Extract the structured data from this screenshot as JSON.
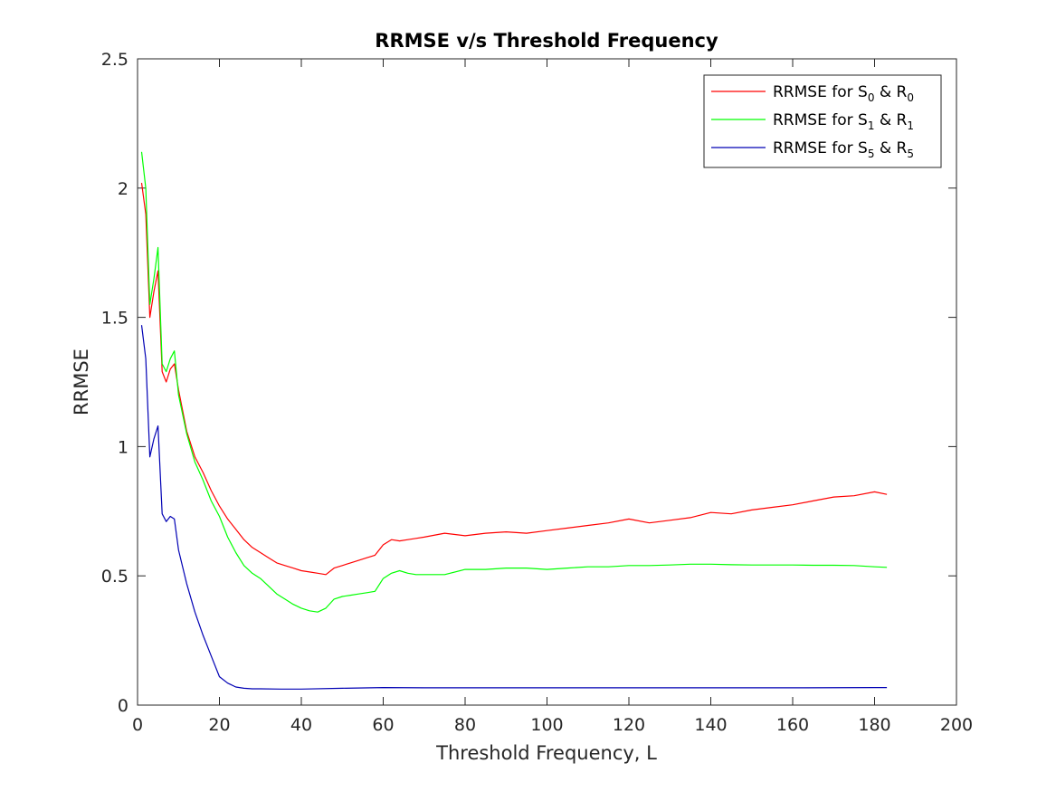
{
  "chart_data": {
    "type": "line",
    "title": "RRMSE v/s Threshold Frequency",
    "xlabel": "Threshold Frequency, L",
    "ylabel": "RRMSE",
    "xlim": [
      0,
      200
    ],
    "ylim": [
      0,
      2.5
    ],
    "xticks": [
      "0",
      "20",
      "40",
      "60",
      "80",
      "100",
      "120",
      "140",
      "160",
      "180",
      "200"
    ],
    "yticks": [
      "0",
      "0.5",
      "1",
      "1.5",
      "2",
      "2.5"
    ],
    "grid": false,
    "legend_position": "top-right",
    "series": [
      {
        "name": "RRMSE for S0 & R0",
        "legend_text": "RRMSE for S",
        "legend_sub1": "0",
        "legend_mid": " & R",
        "legend_sub2": "0",
        "color": "#ff0000",
        "x": [
          1,
          2,
          3,
          4,
          5,
          6,
          7,
          8,
          9,
          10,
          12,
          14,
          16,
          18,
          20,
          22,
          24,
          26,
          28,
          30,
          32,
          34,
          36,
          38,
          40,
          42,
          44,
          46,
          48,
          50,
          52,
          54,
          56,
          58,
          60,
          62,
          64,
          66,
          68,
          70,
          75,
          80,
          85,
          90,
          95,
          100,
          105,
          110,
          115,
          120,
          125,
          130,
          135,
          140,
          145,
          150,
          155,
          160,
          165,
          170,
          175,
          180,
          183
        ],
        "y": [
          2.02,
          1.9,
          1.5,
          1.6,
          1.68,
          1.29,
          1.25,
          1.3,
          1.32,
          1.22,
          1.06,
          0.96,
          0.9,
          0.83,
          0.77,
          0.72,
          0.68,
          0.64,
          0.61,
          0.59,
          0.57,
          0.55,
          0.54,
          0.53,
          0.52,
          0.515,
          0.51,
          0.505,
          0.53,
          0.54,
          0.55,
          0.56,
          0.57,
          0.58,
          0.62,
          0.64,
          0.635,
          0.64,
          0.645,
          0.65,
          0.665,
          0.655,
          0.665,
          0.67,
          0.665,
          0.675,
          0.685,
          0.695,
          0.705,
          0.72,
          0.705,
          0.715,
          0.725,
          0.745,
          0.74,
          0.755,
          0.765,
          0.775,
          0.79,
          0.805,
          0.81,
          0.825,
          0.815
        ]
      },
      {
        "name": "RRMSE for S1 & R1",
        "legend_text": "RRMSE for S",
        "legend_sub1": "1",
        "legend_mid": " & R",
        "legend_sub2": "1",
        "color": "#00ff00",
        "x": [
          1,
          2,
          3,
          4,
          5,
          6,
          7,
          8,
          9,
          10,
          12,
          14,
          16,
          18,
          20,
          22,
          24,
          26,
          28,
          30,
          32,
          34,
          36,
          38,
          40,
          42,
          44,
          46,
          48,
          50,
          52,
          54,
          56,
          58,
          60,
          62,
          64,
          66,
          68,
          70,
          75,
          80,
          85,
          90,
          95,
          100,
          105,
          110,
          115,
          120,
          125,
          130,
          135,
          140,
          145,
          150,
          155,
          160,
          165,
          170,
          175,
          180,
          183
        ],
        "y": [
          2.14,
          2.0,
          1.55,
          1.65,
          1.77,
          1.32,
          1.29,
          1.34,
          1.37,
          1.2,
          1.05,
          0.94,
          0.87,
          0.79,
          0.73,
          0.65,
          0.59,
          0.54,
          0.51,
          0.49,
          0.46,
          0.43,
          0.41,
          0.39,
          0.375,
          0.365,
          0.36,
          0.375,
          0.41,
          0.42,
          0.425,
          0.43,
          0.435,
          0.44,
          0.49,
          0.51,
          0.52,
          0.51,
          0.505,
          0.505,
          0.505,
          0.525,
          0.525,
          0.53,
          0.53,
          0.525,
          0.53,
          0.535,
          0.535,
          0.54,
          0.54,
          0.542,
          0.545,
          0.545,
          0.543,
          0.542,
          0.542,
          0.542,
          0.541,
          0.541,
          0.54,
          0.535,
          0.533
        ]
      },
      {
        "name": "RRMSE for S5 & R5",
        "legend_text": "RRMSE for S",
        "legend_sub1": "5",
        "legend_mid": " & R",
        "legend_sub2": "5",
        "color": "#0000b4",
        "x": [
          1,
          2,
          3,
          4,
          5,
          6,
          7,
          8,
          9,
          10,
          12,
          14,
          16,
          18,
          20,
          22,
          24,
          26,
          28,
          30,
          35,
          40,
          50,
          60,
          70,
          80,
          90,
          100,
          120,
          140,
          160,
          180,
          183
        ],
        "y": [
          1.47,
          1.34,
          0.96,
          1.03,
          1.08,
          0.74,
          0.71,
          0.73,
          0.72,
          0.6,
          0.47,
          0.36,
          0.27,
          0.19,
          0.11,
          0.085,
          0.07,
          0.065,
          0.063,
          0.063,
          0.062,
          0.062,
          0.065,
          0.068,
          0.067,
          0.067,
          0.067,
          0.067,
          0.067,
          0.067,
          0.067,
          0.068,
          0.068
        ]
      }
    ]
  }
}
